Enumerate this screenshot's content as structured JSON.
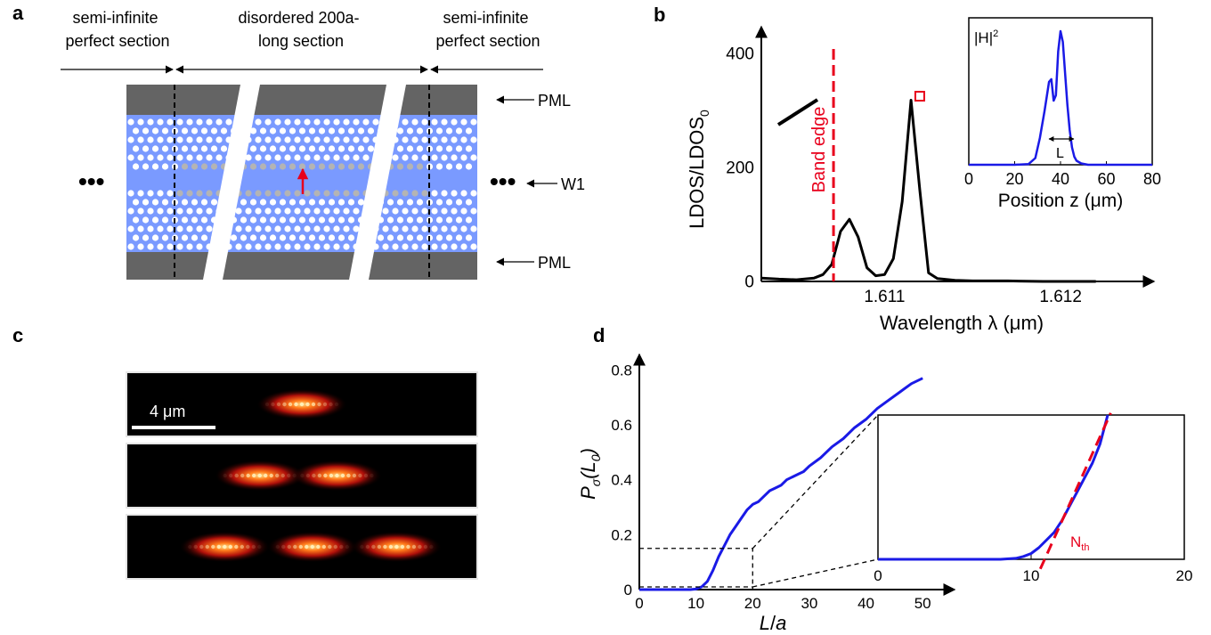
{
  "panels": {
    "a": {
      "label": "a",
      "left_section": [
        "semi-infinite",
        "perfect section"
      ],
      "middle_section": [
        "disordered 200a-",
        "long  section"
      ],
      "right_section": [
        "semi-infinite",
        "perfect section"
      ],
      "pml_top": "PML",
      "pml_bottom": "PML",
      "w1": "W1",
      "dots_left": "•••",
      "dots_right": "•••",
      "colors": {
        "waveguide": "#7a9aff",
        "pml": "#646464",
        "hole": "#ffffff",
        "disordered_hole": "#b4b4b4",
        "arrow": "#e8001c"
      }
    },
    "b": {
      "label": "b",
      "band_edge_label": "Band edge",
      "inset_ylabel": "|H|",
      "inset_ylabel_sup": "2",
      "inset_width_label": "L"
    },
    "c": {
      "label": "c",
      "scale_bar": "4 μm",
      "modes": [
        {
          "lobes": [
            0.5
          ]
        },
        {
          "lobes": [
            0.38,
            0.6
          ]
        },
        {
          "lobes": [
            0.28,
            0.53,
            0.77
          ]
        }
      ]
    },
    "d": {
      "label": "d",
      "threshold_label": "N",
      "threshold_sub": "th"
    }
  },
  "chart_data": [
    {
      "id": "b-main",
      "type": "line",
      "xlabel": "Wavelength λ (μm)",
      "ylabel": "LDOS/LDOS",
      "ylabel_sub": "0",
      "xlim": [
        1.6103,
        1.6125
      ],
      "ylim": [
        0,
        450
      ],
      "xticks": [
        1.611,
        1.612
      ],
      "xtick_labels": [
        "1.611",
        "1.612"
      ],
      "yticks": [
        0,
        200,
        400
      ],
      "ytick_labels": [
        "0",
        "200",
        "400"
      ],
      "series": [
        {
          "color": "#000000",
          "x": [
            1.6103,
            1.6104,
            1.6105,
            1.6106,
            1.61065,
            1.6107,
            1.61075,
            1.6108,
            1.61085,
            1.6109,
            1.61095,
            1.611,
            1.61105,
            1.6111,
            1.61115,
            1.6112,
            1.61125,
            1.6113,
            1.6114,
            1.6115,
            1.6117,
            1.6119,
            1.6122
          ],
          "y": [
            6,
            4,
            3,
            6,
            12,
            30,
            88,
            109,
            78,
            24,
            10,
            12,
            40,
            140,
            318,
            160,
            15,
            5,
            2,
            1,
            1,
            0,
            0
          ]
        }
      ],
      "annotations": [
        {
          "text": "Band edge",
          "x": 1.61071,
          "style": "dashed-vertical",
          "color": "#e8001c"
        },
        {
          "marker": "square",
          "x": 1.6112,
          "y": 325,
          "color": "#e8001c"
        }
      ]
    },
    {
      "id": "b-inset",
      "type": "line",
      "xlabel": "Position z (μm)",
      "ylabel": "|H|^2",
      "xlim": [
        0,
        80
      ],
      "ylim": [
        0,
        1.1
      ],
      "xticks": [
        0,
        20,
        40,
        60,
        80
      ],
      "xtick_labels": [
        "0",
        "20",
        "40",
        "60",
        "80"
      ],
      "series": [
        {
          "color": "#1a1ae6",
          "x": [
            0,
            20,
            26,
            29,
            31,
            33,
            35,
            36,
            37,
            38,
            39,
            40,
            41,
            42,
            43,
            44,
            45,
            46,
            47,
            49,
            52,
            60,
            80
          ],
          "y": [
            0,
            0,
            0.005,
            0.05,
            0.2,
            0.4,
            0.62,
            0.64,
            0.48,
            0.52,
            0.85,
            1.0,
            0.92,
            0.68,
            0.45,
            0.26,
            0.13,
            0.06,
            0.03,
            0.01,
            0,
            0,
            0
          ]
        }
      ]
    },
    {
      "id": "d-main",
      "type": "line",
      "xlabel": "L/a",
      "ylabel": "Pσ(L0)",
      "xlim": [
        0,
        55
      ],
      "ylim": [
        0,
        0.85
      ],
      "xticks": [
        0,
        10,
        20,
        30,
        40,
        50
      ],
      "xtick_labels": [
        "0",
        "10",
        "20",
        "30",
        "40",
        "50"
      ],
      "yticks": [
        0,
        0.2,
        0.4,
        0.6,
        0.8
      ],
      "ytick_labels": [
        "0",
        "0.2",
        "0.4",
        "0.6",
        "0.8"
      ],
      "series": [
        {
          "color": "#1a1ae6",
          "x": [
            0,
            9,
            10,
            11,
            12,
            13,
            14,
            15,
            16,
            17,
            18,
            19,
            20,
            21,
            22,
            23,
            24,
            25,
            26,
            27,
            28,
            29,
            30,
            32,
            34,
            36,
            38,
            40,
            42,
            44,
            46,
            48,
            50
          ],
          "y": [
            0,
            0,
            0.002,
            0.01,
            0.03,
            0.07,
            0.12,
            0.16,
            0.2,
            0.23,
            0.26,
            0.29,
            0.31,
            0.32,
            0.34,
            0.36,
            0.37,
            0.38,
            0.4,
            0.41,
            0.42,
            0.43,
            0.45,
            0.48,
            0.52,
            0.55,
            0.59,
            0.62,
            0.66,
            0.69,
            0.72,
            0.75,
            0.77
          ]
        }
      ]
    },
    {
      "id": "d-inset",
      "type": "line",
      "xlim": [
        0,
        20
      ],
      "ylim": [
        0,
        0.15
      ],
      "xticks": [
        0,
        10,
        20
      ],
      "xtick_labels": [
        "0",
        "10",
        "20"
      ],
      "series": [
        {
          "color": "#1a1ae6",
          "x": [
            0,
            8,
            9,
            9.5,
            10,
            10.5,
            11,
            11.5,
            12,
            12.5,
            13,
            13.5,
            14,
            14.5,
            15
          ],
          "y": [
            0,
            0,
            0.001,
            0.003,
            0.006,
            0.012,
            0.02,
            0.028,
            0.04,
            0.055,
            0.07,
            0.085,
            0.1,
            0.12,
            0.15
          ]
        },
        {
          "color": "#e8001c",
          "style": "dashed",
          "x": [
            10.6,
            15.2
          ],
          "y": [
            -0.01,
            0.152
          ]
        }
      ]
    }
  ]
}
